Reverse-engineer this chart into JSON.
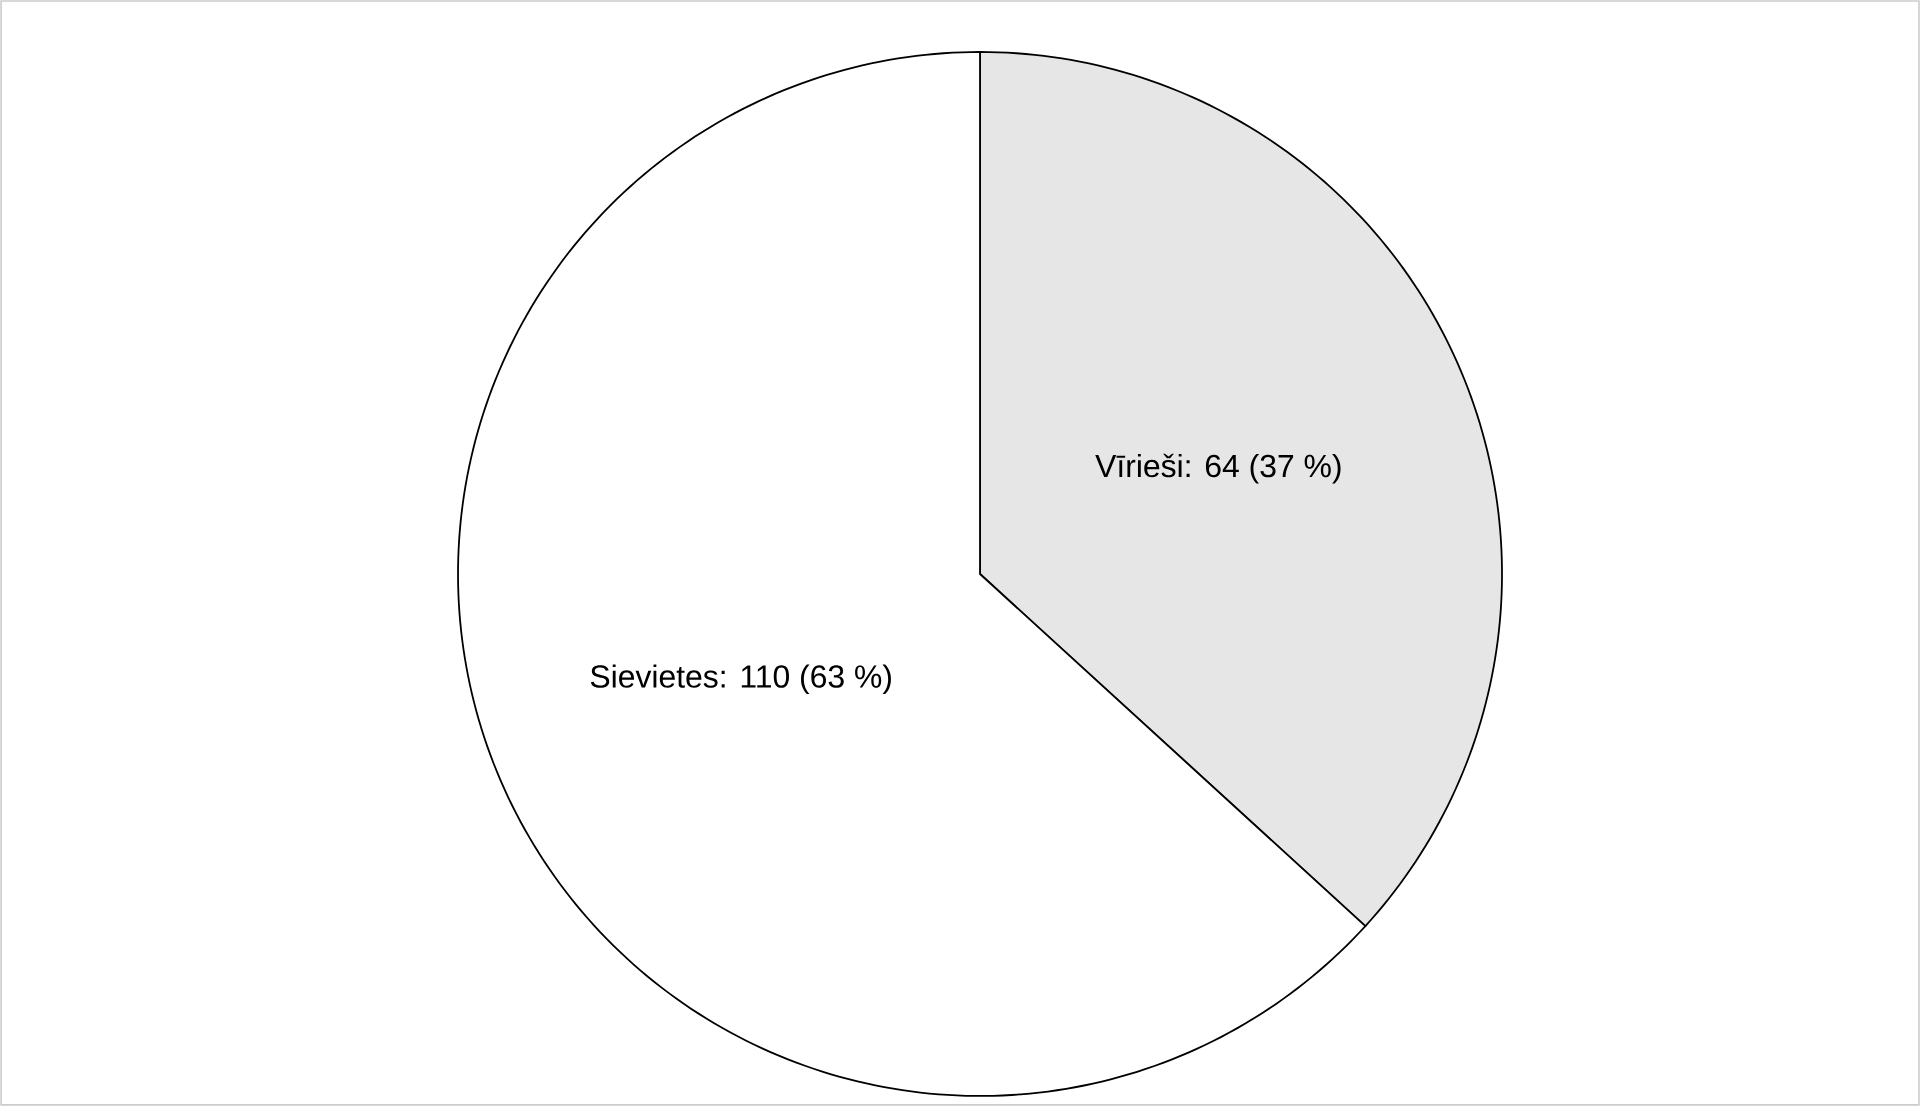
{
  "chart_data": {
    "type": "pie",
    "categories": [
      "Vīrieši: 64 (37 %)",
      "Sievietes: 110 (63 %)"
    ],
    "values": [
      64,
      110
    ],
    "colors": [
      "#e6e6e6",
      "#ffffff"
    ]
  }
}
